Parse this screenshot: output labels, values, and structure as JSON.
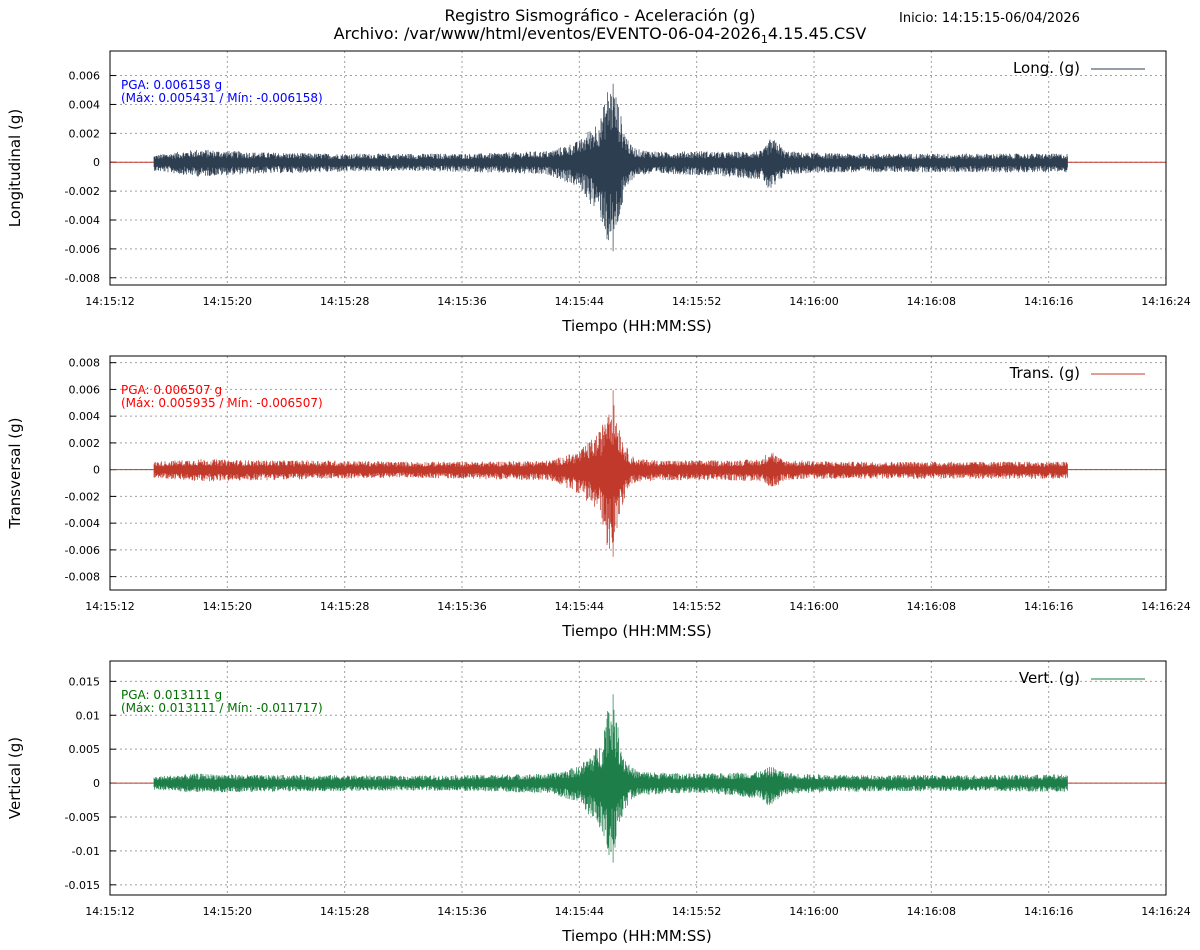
{
  "header": {
    "title_line1": "Registro Sismográfico - Aceleración (g)",
    "title_line2_main": "Archivo: /var/www/html/eventos/EVENTO-06-04-2026",
    "title_line2_sub": "1",
    "title_line2_tail": "4.15.45.CSV",
    "inicio": "Inicio: 14:15:15-06/04/2026"
  },
  "colors": {
    "longitudinal": "#2c3e50",
    "transversal": "#c0392b",
    "vertical": "#1e7e4a",
    "zero_line": "#c0392b",
    "label_long": "#0000ff",
    "label_trans": "#ff0000",
    "label_vert": "#007000"
  },
  "chart_data": [
    {
      "type": "line",
      "key": "long",
      "ylabel": "Longitudinal (g)",
      "xlabel": "Tiempo (HH:MM:SS)",
      "legend": "Long. (g)",
      "legend_position": "top-right",
      "grid": true,
      "pga_text": "PGA: 0.006158 g",
      "maxmin_text": "(Máx: 0.005431 / Mín: -0.006158)",
      "pga": 0.006158,
      "max": 0.005431,
      "min": -0.006158,
      "yticks": [
        "0.006",
        "0.004",
        "0.002",
        "0",
        "-0.002",
        "-0.004",
        "-0.006",
        "-0.008"
      ],
      "ylim": [
        -0.0085,
        0.0077
      ],
      "xticks": [
        "14:15:12",
        "14:15:20",
        "14:15:28",
        "14:15:36",
        "14:15:44",
        "14:15:52",
        "14:16:00",
        "14:16:08",
        "14:16:16",
        "14:16:24"
      ],
      "xlim_seconds": [
        0,
        72
      ],
      "data_start_s": 3,
      "data_end_s": 65.3,
      "series_name": "Long. (g)",
      "envelope": {
        "time_s": [
          3,
          6,
          10,
          15,
          20,
          25,
          30,
          32,
          33.5,
          34.0,
          34.5,
          35.0,
          35.5,
          36,
          38,
          40,
          42,
          44.5,
          45,
          45.5,
          46,
          47,
          50,
          55,
          60,
          65.3
        ],
        "upper": [
          0.0005,
          0.0009,
          0.0007,
          0.0006,
          0.0006,
          0.0006,
          0.0008,
          0.0015,
          0.0032,
          0.0055,
          0.0048,
          0.0025,
          0.0012,
          0.0009,
          0.0007,
          0.0008,
          0.0007,
          0.0008,
          0.0016,
          0.0015,
          0.0008,
          0.0007,
          0.0006,
          0.0006,
          0.0006,
          0.0006
        ],
        "lower": [
          -0.0006,
          -0.001,
          -0.0008,
          -0.0007,
          -0.0006,
          -0.0007,
          -0.0009,
          -0.0018,
          -0.004,
          -0.006,
          -0.005,
          -0.0028,
          -0.0013,
          -0.0009,
          -0.0008,
          -0.0009,
          -0.001,
          -0.0012,
          -0.0022,
          -0.0016,
          -0.0009,
          -0.0008,
          -0.0007,
          -0.0007,
          -0.0007,
          -0.0007
        ]
      }
    },
    {
      "type": "line",
      "key": "trans",
      "ylabel": "Transversal (g)",
      "xlabel": "Tiempo (HH:MM:SS)",
      "legend": "Trans. (g)",
      "legend_position": "top-right",
      "grid": true,
      "pga_text": "PGA: 0.006507 g",
      "maxmin_text": "(Máx: 0.005935 / Mín: -0.006507)",
      "pga": 0.006507,
      "max": 0.005935,
      "min": -0.006507,
      "yticks": [
        "0.008",
        "0.006",
        "0.004",
        "0.002",
        "0",
        "-0.002",
        "-0.004",
        "-0.006",
        "-0.008"
      ],
      "ylim": [
        -0.009,
        0.0085
      ],
      "xticks": [
        "14:15:12",
        "14:15:20",
        "14:15:28",
        "14:15:36",
        "14:15:44",
        "14:15:52",
        "14:16:00",
        "14:16:08",
        "14:16:16",
        "14:16:24"
      ],
      "xlim_seconds": [
        0,
        72
      ],
      "data_start_s": 3,
      "data_end_s": 65.3,
      "series_name": "Trans. (g)",
      "envelope": {
        "time_s": [
          3,
          6,
          10,
          15,
          20,
          25,
          30,
          32,
          33.5,
          34.0,
          34.5,
          35.0,
          35.5,
          36,
          38,
          40,
          42,
          44.5,
          45,
          45.5,
          46,
          47,
          50,
          55,
          60,
          65.3
        ],
        "upper": [
          0.0006,
          0.0008,
          0.0007,
          0.0007,
          0.0006,
          0.0006,
          0.0007,
          0.0014,
          0.003,
          0.0059,
          0.0045,
          0.0022,
          0.0011,
          0.0008,
          0.0007,
          0.0007,
          0.0007,
          0.0008,
          0.0017,
          0.001,
          0.0007,
          0.0007,
          0.0006,
          0.0006,
          0.0006,
          0.0006
        ],
        "lower": [
          -0.0006,
          -0.0009,
          -0.0008,
          -0.0007,
          -0.0006,
          -0.0007,
          -0.0008,
          -0.0018,
          -0.0035,
          -0.0065,
          -0.0048,
          -0.0024,
          -0.0012,
          -0.0009,
          -0.0008,
          -0.0008,
          -0.0008,
          -0.0009,
          -0.0013,
          -0.0012,
          -0.0008,
          -0.0007,
          -0.0007,
          -0.0007,
          -0.0007,
          -0.0007
        ]
      }
    },
    {
      "type": "line",
      "key": "vert",
      "ylabel": "Vertical (g)",
      "xlabel": "Tiempo (HH:MM:SS)",
      "legend": "Vert. (g)",
      "legend_position": "top-right",
      "grid": true,
      "pga_text": "PGA: 0.013111 g",
      "maxmin_text": "(Máx: 0.013111 / Mín: -0.011717)",
      "pga": 0.013111,
      "max": 0.013111,
      "min": -0.011717,
      "yticks": [
        "0.015",
        "0.01",
        "0.005",
        "0",
        "-0.005",
        "-0.01",
        "-0.015"
      ],
      "ylim": [
        -0.0165,
        0.018
      ],
      "xticks": [
        "14:15:12",
        "14:15:20",
        "14:15:28",
        "14:15:36",
        "14:15:44",
        "14:15:52",
        "14:16:00",
        "14:16:08",
        "14:16:16",
        "14:16:24"
      ],
      "xlim_seconds": [
        0,
        72
      ],
      "data_start_s": 3,
      "data_end_s": 65.3,
      "series_name": "Vert. (g)",
      "envelope": {
        "time_s": [
          3,
          6,
          10,
          15,
          20,
          25,
          30,
          32,
          33.5,
          34.0,
          34.5,
          35.0,
          35.5,
          36,
          38,
          40,
          42,
          44.5,
          45,
          45.5,
          46,
          47,
          50,
          55,
          60,
          65.3
        ],
        "upper": [
          0.001,
          0.0014,
          0.0012,
          0.0012,
          0.0011,
          0.0012,
          0.0014,
          0.0025,
          0.006,
          0.0131,
          0.01,
          0.0045,
          0.0025,
          0.0018,
          0.0015,
          0.0014,
          0.0015,
          0.0018,
          0.0025,
          0.0022,
          0.0016,
          0.0014,
          0.0012,
          0.0012,
          0.0012,
          0.0013
        ],
        "lower": [
          -0.001,
          -0.0014,
          -0.0013,
          -0.0012,
          -0.0011,
          -0.0012,
          -0.0015,
          -0.003,
          -0.007,
          -0.0117,
          -0.0095,
          -0.0045,
          -0.0025,
          -0.0018,
          -0.0016,
          -0.0015,
          -0.0018,
          -0.0025,
          -0.004,
          -0.0025,
          -0.0017,
          -0.0015,
          -0.0013,
          -0.0012,
          -0.0012,
          -0.0013
        ]
      }
    }
  ]
}
